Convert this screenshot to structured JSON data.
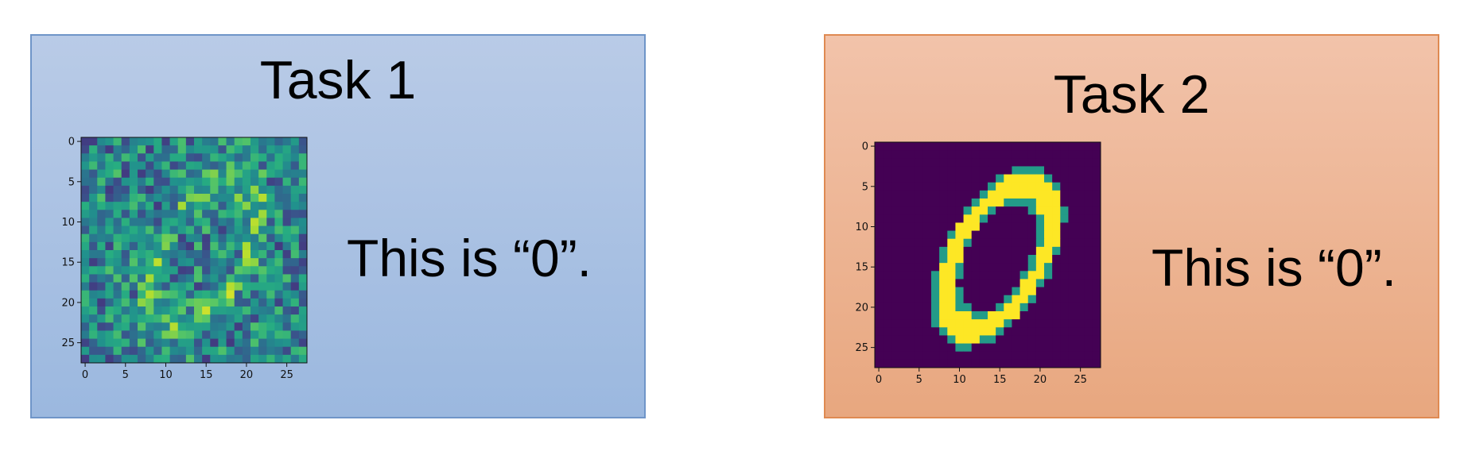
{
  "panels": [
    {
      "title": "Task 1",
      "caption": "This is “0”.",
      "border_color": "#6f95c8",
      "background_color": "#b0c6e6"
    },
    {
      "title": "Task 2",
      "caption": "This is “0”.",
      "border_color": "#df8a52",
      "background_color": "#eeb596"
    }
  ],
  "chart_data": [
    {
      "type": "heatmap",
      "title": "",
      "description": "28x28 noisy digit image (viridis colormap)",
      "xlabel": "",
      "ylabel": "",
      "grid_size": [
        28,
        28
      ],
      "colormap": "viridis",
      "xticks": [
        0,
        5,
        10,
        15,
        20,
        25
      ],
      "yticks": [
        0,
        5,
        10,
        15,
        20,
        25
      ],
      "xlim": [
        -0.5,
        27.5
      ],
      "ylim": [
        27.5,
        -0.5
      ],
      "noise": true,
      "digit": 0
    },
    {
      "type": "heatmap",
      "title": "",
      "description": "28x28 clean MNIST-style digit 0 (viridis colormap)",
      "xlabel": "",
      "ylabel": "",
      "grid_size": [
        28,
        28
      ],
      "colormap": "viridis",
      "xticks": [
        0,
        5,
        10,
        15,
        20,
        25
      ],
      "yticks": [
        0,
        5,
        10,
        15,
        20,
        25
      ],
      "xlim": [
        -0.5,
        27.5
      ],
      "ylim": [
        27.5,
        -0.5
      ],
      "noise": false,
      "digit": 0
    }
  ]
}
